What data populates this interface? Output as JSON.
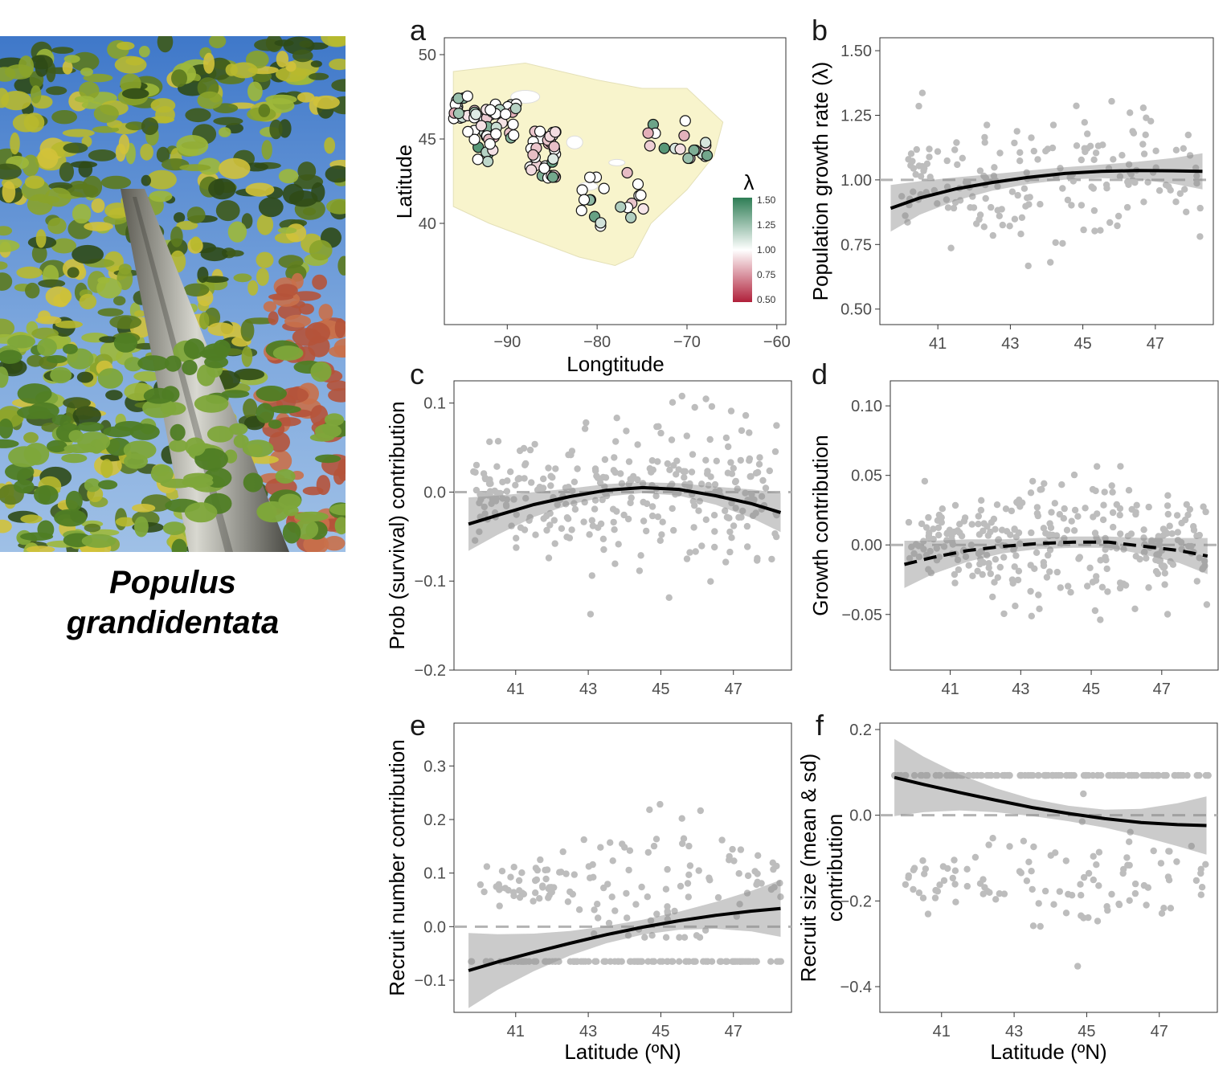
{
  "species": {
    "line1": "Populus",
    "line2": "grandidentata"
  },
  "chart_data": [
    {
      "id": "a",
      "type": "scatter",
      "panel_label": "a",
      "xlabel": "Longtitude",
      "ylabel": "Latitude",
      "xlim": [
        -97,
        -59
      ],
      "ylim": [
        34,
        51
      ],
      "xticks": [
        -90,
        -80,
        -70,
        -60
      ],
      "yticks": [
        40,
        45,
        50
      ],
      "x_tick_labels": [
        "−90",
        "−80",
        "−70",
        "−60"
      ],
      "legend": {
        "title": "λ",
        "labels": [
          "1.50",
          "1.25",
          "1.00",
          "0.75",
          "0.50"
        ],
        "placement": "bottom-right"
      },
      "colors": {
        "high": "#2e7d55",
        "mid": "#ffffff",
        "low": "#b0203a",
        "range": "#f8f4cc"
      },
      "clusters": [
        {
          "lon": [
            -96,
            -93
          ],
          "lat": [
            46.2,
            47.6
          ],
          "n": 22
        },
        {
          "lon": [
            -92.6,
            -89
          ],
          "lat": [
            45,
            47.2
          ],
          "n": 26
        },
        {
          "lon": [
            -94.5,
            -91.2
          ],
          "lat": [
            43.5,
            45.8
          ],
          "n": 16
        },
        {
          "lon": [
            -87.5,
            -84.5
          ],
          "lat": [
            42.6,
            45.5
          ],
          "n": 34
        },
        {
          "lon": [
            -75.5,
            -67.5
          ],
          "lat": [
            43.6,
            46.3
          ],
          "n": 18
        },
        {
          "lon": [
            -82,
            -74
          ],
          "lat": [
            39.5,
            43
          ],
          "n": 20
        }
      ]
    },
    {
      "id": "b",
      "type": "scatter",
      "panel_label": "b",
      "xlabel": "",
      "ylabel": "Population growth rate (λ)",
      "xlim": [
        39.4,
        48.6
      ],
      "ylim": [
        0.44,
        1.55
      ],
      "xticks": [
        41,
        43,
        45,
        47
      ],
      "yticks": [
        0.5,
        0.75,
        1.0,
        1.25,
        1.5
      ],
      "y_tick_labels": [
        "0.50",
        "0.75",
        "1.00",
        "1.25",
        "1.50"
      ],
      "hline": 1.0,
      "fit": {
        "style": "solid",
        "x": [
          39.7,
          40.5,
          41.5,
          42.5,
          43.5,
          44.5,
          45.5,
          46.5,
          47.5,
          48.3
        ],
        "y": [
          0.89,
          0.93,
          0.965,
          0.99,
          1.01,
          1.025,
          1.033,
          1.036,
          1.035,
          1.033
        ],
        "band": [
          0.09,
          0.065,
          0.045,
          0.032,
          0.026,
          0.024,
          0.026,
          0.034,
          0.05,
          0.07
        ]
      },
      "scatter_gen": {
        "n": 180,
        "x": [
          40,
          48.3
        ],
        "spread": 0.15,
        "seed": 11,
        "center": [
          45,
          1.0
        ]
      }
    },
    {
      "id": "c",
      "type": "scatter",
      "panel_label": "c",
      "xlabel": "",
      "ylabel": "Prob (survival) contribution",
      "xlim": [
        39.3,
        48.6
      ],
      "ylim": [
        -0.2,
        0.125
      ],
      "xticks": [
        41,
        43,
        45,
        47
      ],
      "yticks": [
        -0.2,
        -0.1,
        0.0,
        0.1
      ],
      "y_tick_labels": [
        "−0.2",
        "−0.1",
        "0.0",
        "0.1"
      ],
      "hline": 0.0,
      "fit": {
        "style": "solid",
        "x": [
          39.7,
          40.5,
          41.5,
          42.5,
          43.5,
          44.5,
          45.5,
          46.5,
          47.5,
          48.3
        ],
        "y": [
          -0.036,
          -0.026,
          -0.014,
          -0.005,
          0.002,
          0.005,
          0.003,
          -0.004,
          -0.013,
          -0.023
        ],
        "band": [
          0.03,
          0.022,
          0.014,
          0.009,
          0.007,
          0.006,
          0.007,
          0.01,
          0.016,
          0.022
        ]
      },
      "scatter_gen": {
        "n": 300,
        "x": [
          39.8,
          48.2
        ],
        "spread": 0.045,
        "seed": 23,
        "center": [
          45,
          0.0
        ]
      }
    },
    {
      "id": "d",
      "type": "scatter",
      "panel_label": "d",
      "xlabel": "",
      "ylabel": "Growth contribution",
      "xlim": [
        39.3,
        48.6
      ],
      "ylim": [
        -0.09,
        0.118
      ],
      "xticks": [
        41,
        43,
        45,
        47
      ],
      "yticks": [
        -0.05,
        0.0,
        0.05,
        0.1
      ],
      "y_tick_labels": [
        "−0.05",
        "0.00",
        "0.05",
        "0.10"
      ],
      "hline": 0.0,
      "fit": {
        "style": "dashed",
        "x": [
          39.7,
          40.5,
          41.5,
          42.5,
          43.5,
          44.5,
          45.5,
          46.5,
          47.5,
          48.3
        ],
        "y": [
          -0.014,
          -0.009,
          -0.004,
          -0.001,
          0.001,
          0.002,
          0.002,
          -0.001,
          -0.004,
          -0.008
        ],
        "band": [
          0.017,
          0.012,
          0.008,
          0.005,
          0.004,
          0.004,
          0.004,
          0.006,
          0.009,
          0.013
        ]
      },
      "scatter_gen": {
        "n": 300,
        "x": [
          39.8,
          48.3
        ],
        "spread": 0.025,
        "seed": 37,
        "center": [
          45,
          0.0
        ]
      }
    },
    {
      "id": "e",
      "type": "scatter",
      "panel_label": "e",
      "xlabel": "Latitude (ºN)",
      "ylabel": "Recruit number contribution",
      "xlim": [
        39.3,
        48.6
      ],
      "ylim": [
        -0.16,
        0.38
      ],
      "xticks": [
        41,
        43,
        45,
        47
      ],
      "yticks": [
        -0.1,
        0.0,
        0.1,
        0.2,
        0.3
      ],
      "y_tick_labels": [
        "−0.1",
        "0.0",
        "0.1",
        "0.2",
        "0.3"
      ],
      "hline": 0.0,
      "fit": {
        "style": "solid",
        "x": [
          39.7,
          40.5,
          41.5,
          42.5,
          43.5,
          44.5,
          45.5,
          46.5,
          47.5,
          48.3
        ],
        "y": [
          -0.082,
          -0.066,
          -0.048,
          -0.031,
          -0.015,
          -0.001,
          0.011,
          0.021,
          0.029,
          0.034
        ],
        "band": [
          0.07,
          0.052,
          0.035,
          0.023,
          0.016,
          0.014,
          0.017,
          0.025,
          0.038,
          0.053
        ]
      },
      "baseline_row": -0.065,
      "scatter_gen": {
        "n": 140,
        "x": [
          39.8,
          48.3
        ],
        "spread": 0.1,
        "seed": 53,
        "center": [
          45.2,
          0.08
        ]
      }
    },
    {
      "id": "f",
      "type": "scatter",
      "panel_label": "f",
      "xlabel": "Latitude (ºN)",
      "ylabel": "Recruit size (mean & sd)",
      "ylabel2": "contribution",
      "xlim": [
        39.3,
        48.6
      ],
      "ylim": [
        -0.46,
        0.215
      ],
      "xticks": [
        41,
        43,
        45,
        47
      ],
      "yticks": [
        -0.4,
        -0.2,
        0.0,
        0.2
      ],
      "y_tick_labels": [
        "−0.4",
        "−0.2",
        "0.0",
        "0.2"
      ],
      "hline": 0.0,
      "fit": {
        "style": "solid",
        "x": [
          39.7,
          40.5,
          41.5,
          42.5,
          43.5,
          44.5,
          45.5,
          46.5,
          47.5,
          48.3
        ],
        "y": [
          0.088,
          0.072,
          0.053,
          0.035,
          0.018,
          0.004,
          -0.008,
          -0.017,
          -0.022,
          -0.024
        ],
        "band": [
          0.09,
          0.065,
          0.042,
          0.028,
          0.02,
          0.018,
          0.021,
          0.032,
          0.05,
          0.068
        ]
      },
      "baseline_row": 0.093,
      "scatter_gen": {
        "n": 110,
        "x": [
          40,
          48.3
        ],
        "spread": 0.12,
        "seed": 71,
        "center": [
          45.5,
          -0.15
        ]
      }
    }
  ]
}
